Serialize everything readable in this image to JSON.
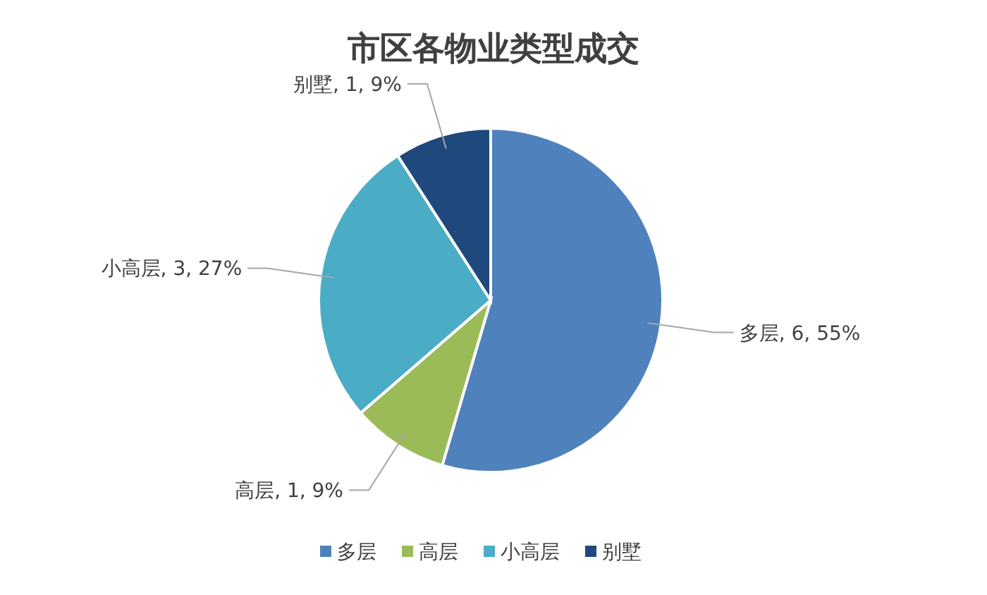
{
  "chart_data": {
    "type": "pie",
    "title": "市区各物业类型成交",
    "categories": [
      "多层",
      "高层",
      "小高层",
      "别墅"
    ],
    "values": [
      6,
      1,
      3,
      1
    ],
    "colors": [
      "#4f81bd",
      "#9bbb59",
      "#4bacc6",
      "#1f497d"
    ],
    "value_labels": [
      "多层, 6, 55%",
      "高层, 1, 9%",
      "小高层, 3, 27%",
      "别墅, 1, 9%"
    ],
    "legend": "bottom"
  }
}
